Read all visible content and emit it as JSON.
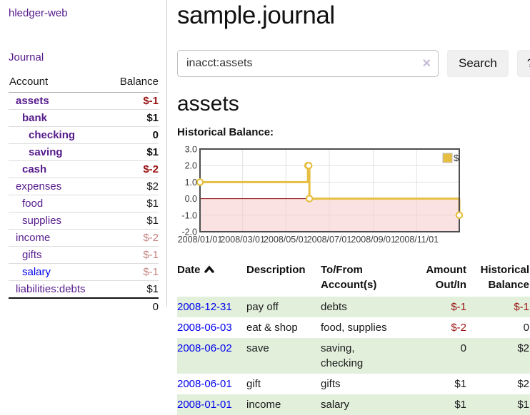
{
  "app": {
    "title": "hledger-web"
  },
  "sidebar": {
    "journal_label": "Journal",
    "accounts": {
      "headers": {
        "account": "Account",
        "balance": "Balance"
      },
      "rows": [
        {
          "name": "assets",
          "indent": 1,
          "bold": true,
          "link_color": "purple",
          "balance": "$-1",
          "balance_style": "neg"
        },
        {
          "name": "bank",
          "indent": 2,
          "bold": true,
          "link_color": "purple",
          "balance": "$1",
          "balance_style": ""
        },
        {
          "name": "checking",
          "indent": 3,
          "bold": true,
          "link_color": "purple",
          "balance": "0",
          "balance_style": ""
        },
        {
          "name": "saving",
          "indent": 3,
          "bold": true,
          "link_color": "purple",
          "balance": "$1",
          "balance_style": ""
        },
        {
          "name": "cash",
          "indent": 2,
          "bold": true,
          "link_color": "purple",
          "balance": "$-2",
          "balance_style": "neg"
        },
        {
          "name": "expenses",
          "indent": 1,
          "bold": false,
          "link_color": "purple",
          "balance": "$2",
          "balance_style": ""
        },
        {
          "name": "food",
          "indent": 2,
          "bold": false,
          "link_color": "purple",
          "balance": "$1",
          "balance_style": ""
        },
        {
          "name": "supplies",
          "indent": 2,
          "bold": false,
          "link_color": "purple",
          "balance": "$1",
          "balance_style": ""
        },
        {
          "name": "income",
          "indent": 1,
          "bold": false,
          "link_color": "purple",
          "balance": "$-2",
          "balance_style": "neg-faded"
        },
        {
          "name": "gifts",
          "indent": 2,
          "bold": false,
          "link_color": "purple",
          "balance": "$-1",
          "balance_style": "neg-faded"
        },
        {
          "name": "salary",
          "indent": 2,
          "bold": false,
          "link_color": "blue",
          "balance": "$-1",
          "balance_style": "neg-faded"
        },
        {
          "name": "liabilities:debts",
          "indent": 1,
          "bold": false,
          "link_color": "purple",
          "balance": "$1",
          "balance_style": ""
        }
      ],
      "total": "0"
    }
  },
  "main": {
    "title": "sample.journal",
    "search": {
      "value": "inacct:assets",
      "clear_icon": "✕",
      "button_label": "Search",
      "help_label": "?"
    },
    "account_heading": "assets",
    "chart_label": "Historical Balance:"
  },
  "chart_data": {
    "type": "line",
    "title": "Historical Balance",
    "step": true,
    "x_epoch": "2008-01-01",
    "x_range_days": [
      0,
      365
    ],
    "ylim": [
      -2,
      3
    ],
    "y_ticks": [
      "3.0",
      "2.0",
      "1.0",
      "0.0",
      "-1.0",
      "-2.0"
    ],
    "y_tick_values": [
      3,
      2,
      1,
      0,
      -1,
      -2
    ],
    "x_tick_labels": [
      "2008/01/01",
      "2008/03/01",
      "2008/05/01",
      "2008/07/01",
      "2008/09/01",
      "2008/11/01"
    ],
    "x_tick_days": [
      0,
      60,
      121,
      182,
      244,
      305
    ],
    "series": [
      {
        "name": "$",
        "color": "#e6bf42",
        "points": [
          {
            "date": "2008-01-01",
            "day": 0,
            "value": 1
          },
          {
            "date": "2008-06-01",
            "day": 152,
            "value": 2
          },
          {
            "date": "2008-06-02",
            "day": 153,
            "value": 2
          },
          {
            "date": "2008-06-03",
            "day": 154,
            "value": 0
          },
          {
            "date": "2008-12-31",
            "day": 365,
            "value": -1
          }
        ]
      }
    ],
    "legend": {
      "label": "$",
      "swatch_color": "#e6bf42",
      "position": "top-right"
    },
    "grid": true,
    "colors": {
      "negative_region": "#f6caca",
      "zero_line": "#8b0000",
      "grid_line": "#e2e2e2",
      "border": "#4d4d4d",
      "tick_text": "#3c3c3c"
    }
  },
  "transactions": {
    "headers": [
      {
        "lines": [
          "Date"
        ],
        "align": "left",
        "sort": "asc"
      },
      {
        "lines": [
          "Description"
        ],
        "align": "left"
      },
      {
        "lines": [
          "To/From",
          "Account(s)"
        ],
        "align": "left"
      },
      {
        "lines": [
          "Amount",
          "Out/In"
        ],
        "align": "right"
      },
      {
        "lines": [
          "Historical",
          "Balance"
        ],
        "align": "right"
      }
    ],
    "rows": [
      {
        "date": "2008-12-31",
        "description": "pay off",
        "accounts": [
          "debts"
        ],
        "amount": "$-1",
        "amount_neg": true,
        "balance": "$-1",
        "balance_neg": true,
        "shaded": true
      },
      {
        "date": "2008-06-03",
        "description": "eat & shop",
        "accounts": [
          "food, supplies"
        ],
        "amount": "$-2",
        "amount_neg": true,
        "balance": "0",
        "balance_neg": false,
        "shaded": false
      },
      {
        "date": "2008-06-02",
        "description": "save",
        "accounts": [
          "saving,",
          "checking"
        ],
        "amount": "0",
        "amount_neg": false,
        "balance": "$2",
        "balance_neg": false,
        "shaded": true
      },
      {
        "date": "2008-06-01",
        "description": "gift",
        "accounts": [
          "gifts"
        ],
        "amount": "$1",
        "amount_neg": false,
        "balance": "$2",
        "balance_neg": false,
        "shaded": false
      },
      {
        "date": "2008-01-01",
        "description": "income",
        "accounts": [
          "salary"
        ],
        "amount": "$1",
        "amount_neg": false,
        "balance": "$1",
        "balance_neg": false,
        "shaded": true
      }
    ]
  }
}
